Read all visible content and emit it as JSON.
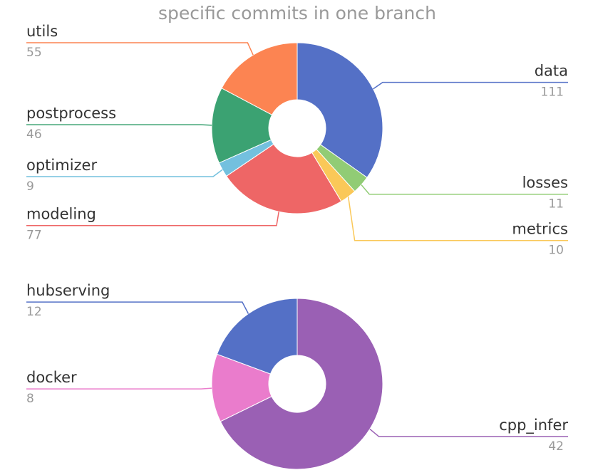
{
  "chart_data": [
    {
      "type": "donut",
      "title": "specific commits in one branch",
      "categories": [
        "data",
        "losses",
        "metrics",
        "modeling",
        "optimizer",
        "postprocess",
        "utils"
      ],
      "values": [
        111,
        11,
        10,
        77,
        9,
        46,
        55
      ],
      "colors": [
        "#5470c6",
        "#91cc75",
        "#fac858",
        "#ee6666",
        "#73c0de",
        "#3ba272",
        "#fc8452"
      ]
    },
    {
      "type": "donut",
      "categories": [
        "cpp_infer",
        "docker",
        "hubserving"
      ],
      "values": [
        42,
        8,
        12
      ],
      "colors": [
        "#9a60b4",
        "#ea7ccc",
        "#5470c6"
      ]
    }
  ]
}
